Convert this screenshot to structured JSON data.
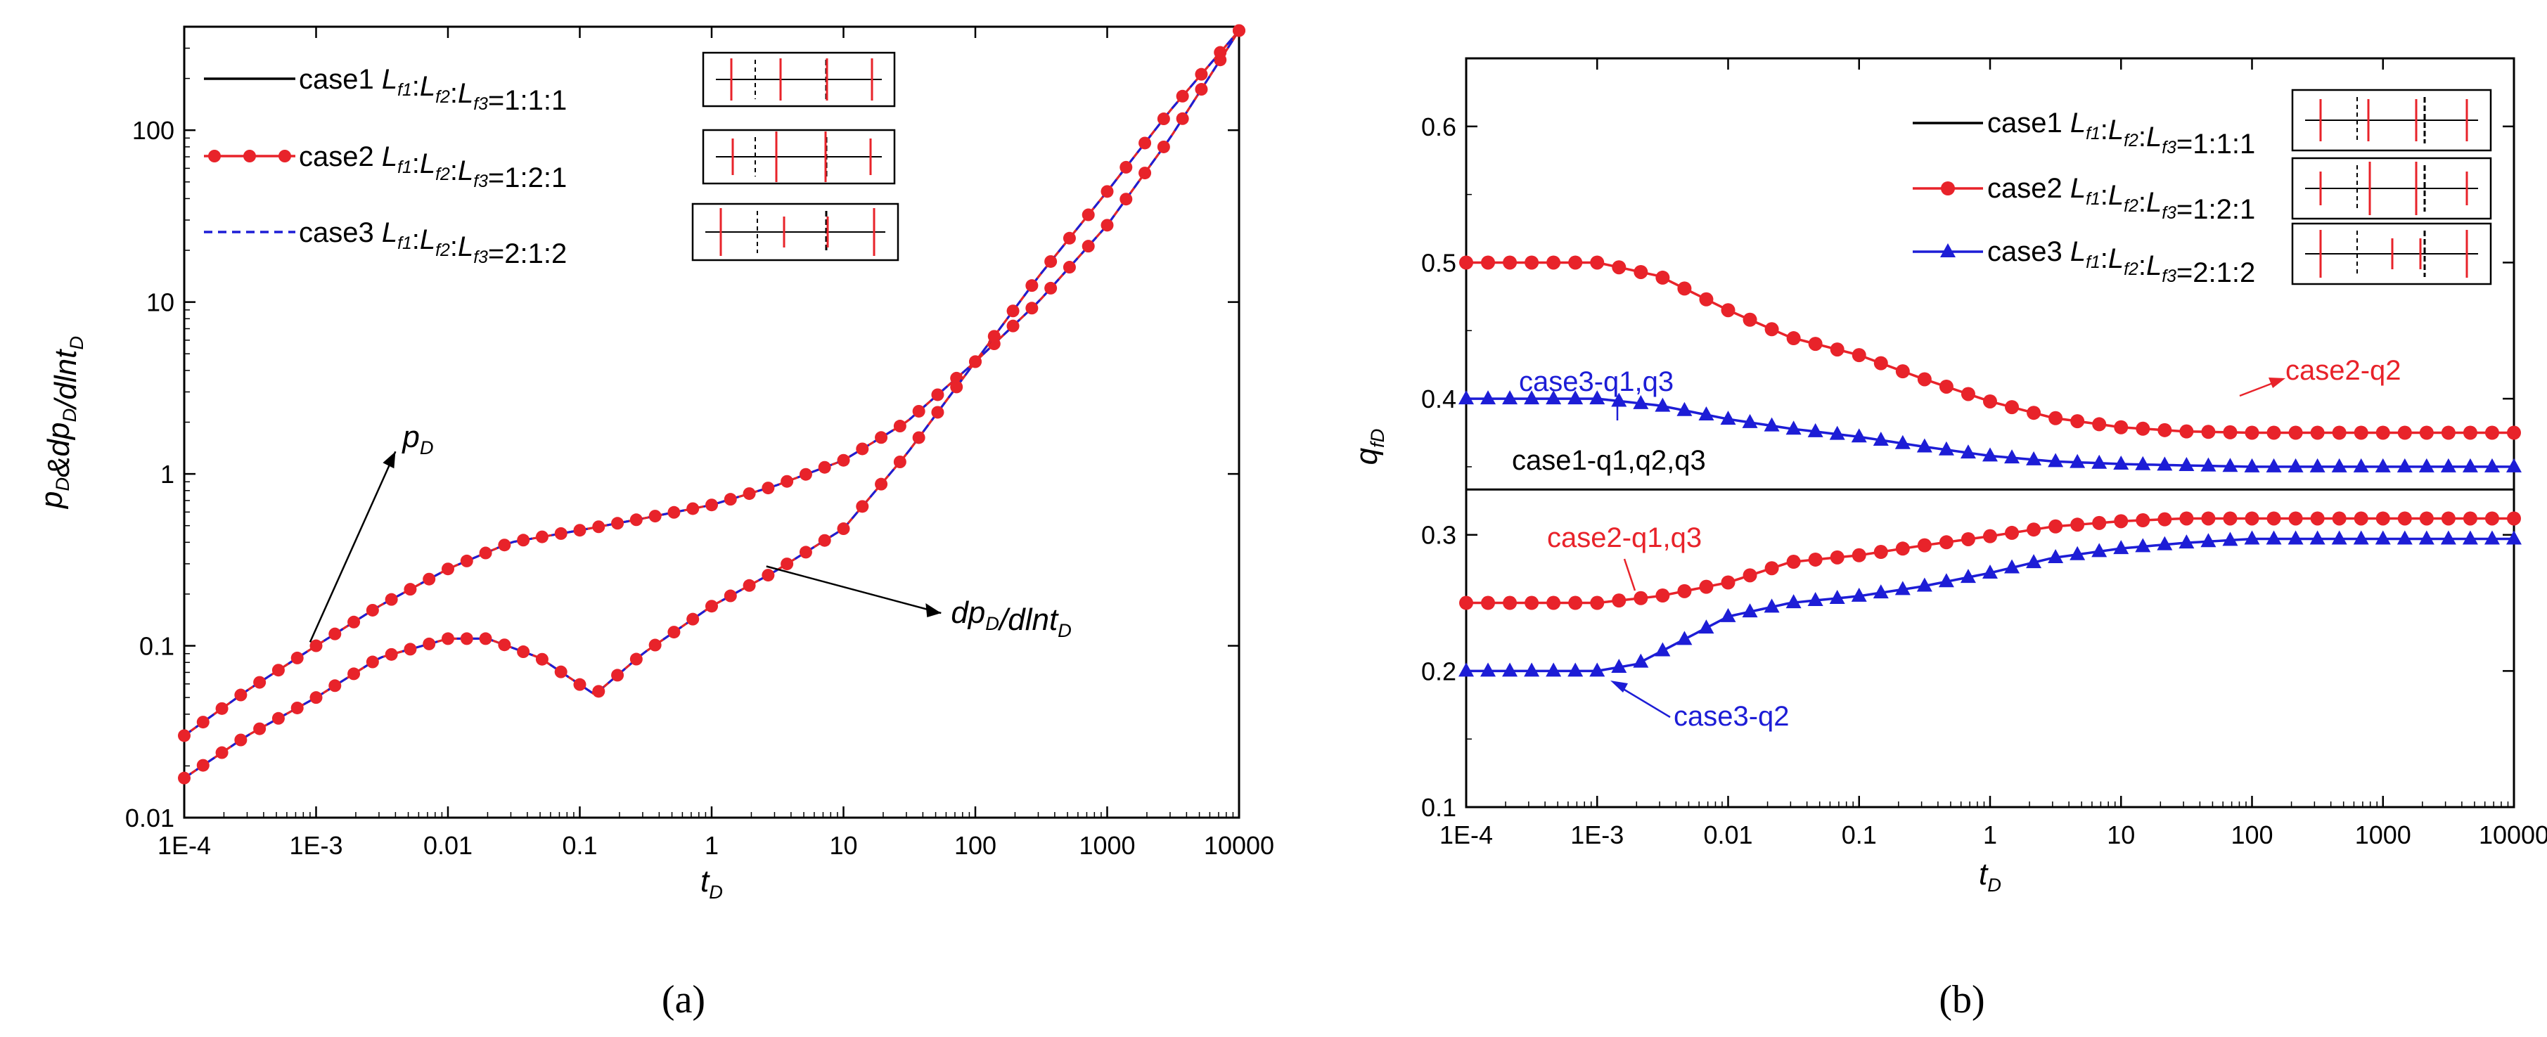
{
  "chart_data": [
    {
      "type": "line",
      "panel_label": "(a)",
      "xscale": "log",
      "yscale": "log",
      "xlim": [
        0.0001,
        10000
      ],
      "ylim": [
        0.01,
        400
      ],
      "xlabel": "tD",
      "ylabel": "pD&dpD/dlntD",
      "xticks": [
        "1E-4",
        "1E-3",
        "0.01",
        "0.1",
        "1",
        "10",
        "100",
        "1000",
        "10000"
      ],
      "yticks": [
        "0.01",
        "0.1",
        "1",
        "10",
        "100"
      ],
      "legend": [
        {
          "label": "case1",
          "ratio": "Lf1:Lf2:Lf3=1:1:1",
          "style": "black solid"
        },
        {
          "label": "case2",
          "ratio": "Lf1:Lf2:Lf3=1:2:1",
          "style": "red solid circles"
        },
        {
          "label": "case3",
          "ratio": "Lf1:Lf2:Lf3=2:1:2",
          "style": "blue dashed"
        }
      ],
      "annotations": [
        "pD",
        "dpD/dlntD"
      ],
      "series": [
        {
          "name": "pD",
          "x": [
            0.0001,
            0.0003,
            0.001,
            0.003,
            0.01,
            0.03,
            0.1,
            0.3,
            1,
            3,
            10,
            30,
            100,
            300,
            1000,
            3000,
            10000
          ],
          "y": [
            0.03,
            0.055,
            0.1,
            0.17,
            0.28,
            0.4,
            0.47,
            0.55,
            0.66,
            0.85,
            1.2,
            2.0,
            4.5,
            10,
            28,
            90,
            380
          ]
        },
        {
          "name": "dpD/dlntD",
          "x": [
            0.0001,
            0.0003,
            0.001,
            0.003,
            0.01,
            0.02,
            0.05,
            0.13,
            0.3,
            1,
            3,
            10,
            30,
            100,
            300,
            1000,
            3000,
            10000
          ],
          "y": [
            0.017,
            0.03,
            0.05,
            0.085,
            0.11,
            0.11,
            0.085,
            0.052,
            0.09,
            0.17,
            0.27,
            0.48,
            1.3,
            4.5,
            14,
            44,
            130,
            380
          ]
        }
      ]
    },
    {
      "type": "line",
      "panel_label": "(b)",
      "xscale": "log",
      "yscale": "linear",
      "xlim": [
        0.0001,
        10000
      ],
      "ylim": [
        0.1,
        0.65
      ],
      "xlabel": "tD",
      "ylabel": "qfD",
      "xticks": [
        "1E-4",
        "1E-3",
        "0.01",
        "0.1",
        "1",
        "10",
        "100",
        "1000",
        "10000"
      ],
      "yticks": [
        "0.1",
        "0.2",
        "0.3",
        "0.4",
        "0.5",
        "0.6"
      ],
      "reference_line": 0.3333,
      "legend": [
        {
          "label": "case1",
          "ratio": "Lf1:Lf2:Lf3=1:1:1",
          "style": "black solid"
        },
        {
          "label": "case2",
          "ratio": "Lf1:Lf2:Lf3=1:2:1",
          "style": "red solid circles"
        },
        {
          "label": "case3",
          "ratio": "Lf1:Lf2:Lf3=2:1:2",
          "style": "blue solid triangles"
        }
      ],
      "annotations": [
        "case3-q1,q3",
        "case2-q2",
        "case1-q1,q2,q3",
        "case2-q1,q3",
        "case3-q2"
      ],
      "series": [
        {
          "name": "case2-q2",
          "x": [
            0.0001,
            0.001,
            0.003,
            0.01,
            0.03,
            0.1,
            0.3,
            1,
            3,
            10,
            30,
            100,
            10000
          ],
          "y": [
            0.5,
            0.5,
            0.49,
            0.465,
            0.445,
            0.432,
            0.415,
            0.398,
            0.386,
            0.379,
            0.376,
            0.375,
            0.375
          ]
        },
        {
          "name": "case3-q1,q3",
          "x": [
            0.0001,
            0.001,
            0.003,
            0.01,
            0.03,
            0.1,
            0.3,
            1,
            3,
            10,
            30,
            100,
            10000
          ],
          "y": [
            0.4,
            0.4,
            0.395,
            0.385,
            0.378,
            0.372,
            0.365,
            0.358,
            0.354,
            0.352,
            0.351,
            0.35,
            0.35
          ]
        },
        {
          "name": "case2-q1,q3",
          "x": [
            0.0001,
            0.001,
            0.003,
            0.01,
            0.03,
            0.1,
            0.3,
            1,
            3,
            10,
            30,
            100,
            10000
          ],
          "y": [
            0.25,
            0.25,
            0.255,
            0.265,
            0.28,
            0.285,
            0.292,
            0.299,
            0.306,
            0.31,
            0.312,
            0.312,
            0.312
          ]
        },
        {
          "name": "case3-q2",
          "x": [
            0.0001,
            0.001,
            0.002,
            0.004,
            0.01,
            0.03,
            0.1,
            0.3,
            1,
            3,
            10,
            30,
            100,
            10000
          ],
          "y": [
            0.2,
            0.2,
            0.205,
            0.22,
            0.24,
            0.25,
            0.255,
            0.262,
            0.272,
            0.283,
            0.29,
            0.294,
            0.297,
            0.297
          ]
        }
      ]
    }
  ]
}
